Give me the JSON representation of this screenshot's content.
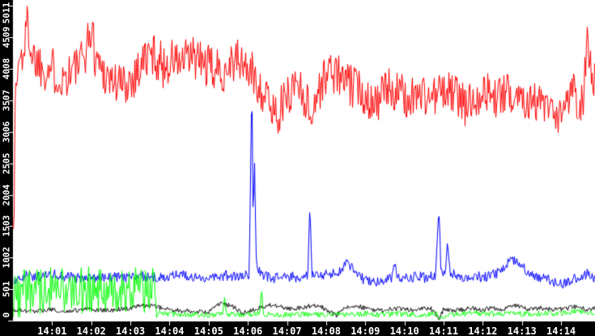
{
  "chart_data": {
    "type": "line",
    "grid": false,
    "legend": "none",
    "background": {
      "plot": "#ffffff",
      "frame": "#000000",
      "label_color": "#ffffff"
    },
    "x_axis": {
      "tick_labels": [
        "14:01",
        "14:02",
        "14:03",
        "14:04",
        "14:05",
        "14:06",
        "14:07",
        "14:08",
        "14:09",
        "14:10",
        "14:11",
        "14:12",
        "14:13",
        "14:14"
      ],
      "tick_seconds": [
        60,
        120,
        180,
        240,
        300,
        360,
        420,
        480,
        540,
        600,
        660,
        720,
        780,
        840
      ],
      "range_seconds": [
        0,
        892
      ]
    },
    "y_axis": {
      "tick_values": [
        0,
        501,
        1002,
        1503,
        2004,
        2505,
        3006,
        3507,
        4008,
        4509,
        5011
      ],
      "range": [
        0,
        5011
      ]
    },
    "render_seed": 1337,
    "series": [
      {
        "name": "red-series",
        "color": "#ff0000",
        "clamp": [
          0,
          5011
        ],
        "noise_amplitude": [
          [
            0,
            380
          ],
          [
            892,
            320
          ]
        ],
        "keyframes": [
          [
            1,
            1700
          ],
          [
            3,
            3600
          ],
          [
            8,
            4100
          ],
          [
            15,
            4250
          ],
          [
            22,
            4800
          ],
          [
            28,
            4250
          ],
          [
            45,
            4050
          ],
          [
            60,
            4000
          ],
          [
            75,
            3850
          ],
          [
            90,
            4000
          ],
          [
            105,
            4100
          ],
          [
            120,
            4650
          ],
          [
            126,
            4200
          ],
          [
            140,
            3950
          ],
          [
            155,
            3800
          ],
          [
            170,
            3750
          ],
          [
            185,
            3900
          ],
          [
            200,
            4150
          ],
          [
            215,
            4250
          ],
          [
            230,
            4050
          ],
          [
            245,
            4150
          ],
          [
            260,
            4100
          ],
          [
            275,
            4200
          ],
          [
            290,
            4100
          ],
          [
            305,
            4000
          ],
          [
            320,
            3950
          ],
          [
            335,
            4150
          ],
          [
            350,
            4100
          ],
          [
            365,
            3950
          ],
          [
            380,
            3700
          ],
          [
            395,
            3400
          ],
          [
            405,
            3300
          ],
          [
            420,
            3550
          ],
          [
            435,
            3850
          ],
          [
            450,
            3500
          ],
          [
            455,
            3250
          ],
          [
            470,
            3700
          ],
          [
            485,
            4000
          ],
          [
            500,
            3900
          ],
          [
            515,
            3750
          ],
          [
            530,
            3700
          ],
          [
            545,
            3550
          ],
          [
            560,
            3500
          ],
          [
            575,
            3700
          ],
          [
            590,
            3650
          ],
          [
            605,
            3500
          ],
          [
            620,
            3650
          ],
          [
            635,
            3550
          ],
          [
            650,
            3600
          ],
          [
            665,
            3650
          ],
          [
            680,
            3600
          ],
          [
            695,
            3400
          ],
          [
            710,
            3600
          ],
          [
            725,
            3650
          ],
          [
            740,
            3550
          ],
          [
            755,
            3600
          ],
          [
            770,
            3650
          ],
          [
            785,
            3550
          ],
          [
            800,
            3500
          ],
          [
            815,
            3400
          ],
          [
            835,
            3150
          ],
          [
            848,
            3400
          ],
          [
            858,
            3900
          ],
          [
            866,
            3350
          ],
          [
            875,
            3600
          ],
          [
            881,
            4650
          ],
          [
            884,
            4100
          ],
          [
            889,
            3850
          ],
          [
            892,
            3800
          ]
        ]
      },
      {
        "name": "blue-series",
        "color": "#0000ff",
        "clamp": [
          0,
          5011
        ],
        "noise_amplitude": [
          [
            0,
            85
          ],
          [
            892,
            85
          ]
        ],
        "keyframes": [
          [
            1,
            650
          ],
          [
            20,
            720
          ],
          [
            40,
            700
          ],
          [
            60,
            760
          ],
          [
            80,
            700
          ],
          [
            100,
            680
          ],
          [
            120,
            700
          ],
          [
            140,
            680
          ],
          [
            160,
            700
          ],
          [
            180,
            690
          ],
          [
            200,
            700
          ],
          [
            220,
            680
          ],
          [
            240,
            700
          ],
          [
            255,
            760
          ],
          [
            270,
            700
          ],
          [
            290,
            680
          ],
          [
            310,
            700
          ],
          [
            330,
            720
          ],
          [
            350,
            700
          ],
          [
            362,
            720
          ],
          [
            366,
            3980
          ],
          [
            368,
            1400
          ],
          [
            370,
            2550
          ],
          [
            373,
            850
          ],
          [
            385,
            700
          ],
          [
            400,
            680
          ],
          [
            420,
            700
          ],
          [
            440,
            690
          ],
          [
            452,
            700
          ],
          [
            455,
            1900
          ],
          [
            458,
            750
          ],
          [
            470,
            700
          ],
          [
            485,
            750
          ],
          [
            500,
            780
          ],
          [
            508,
            850
          ],
          [
            513,
            930
          ],
          [
            525,
            750
          ],
          [
            540,
            640
          ],
          [
            552,
            600
          ],
          [
            565,
            620
          ],
          [
            580,
            680
          ],
          [
            585,
            950
          ],
          [
            590,
            700
          ],
          [
            605,
            680
          ],
          [
            620,
            700
          ],
          [
            635,
            680
          ],
          [
            648,
            720
          ],
          [
            653,
            1900
          ],
          [
            656,
            800
          ],
          [
            662,
            700
          ],
          [
            666,
            1280
          ],
          [
            670,
            750
          ],
          [
            685,
            700
          ],
          [
            700,
            680
          ],
          [
            715,
            700
          ],
          [
            730,
            700
          ],
          [
            745,
            780
          ],
          [
            758,
            920
          ],
          [
            768,
            980
          ],
          [
            778,
            900
          ],
          [
            790,
            750
          ],
          [
            805,
            700
          ],
          [
            820,
            650
          ],
          [
            835,
            590
          ],
          [
            848,
            600
          ],
          [
            860,
            680
          ],
          [
            872,
            720
          ],
          [
            882,
            750
          ],
          [
            892,
            680
          ]
        ]
      },
      {
        "name": "black-series",
        "color": "#000000",
        "clamp": [
          5,
          5011
        ],
        "noise_amplitude": [
          [
            0,
            38
          ],
          [
            892,
            38
          ]
        ],
        "keyframes": [
          [
            1,
            170
          ],
          [
            25,
            140
          ],
          [
            55,
            170
          ],
          [
            85,
            150
          ],
          [
            115,
            185
          ],
          [
            145,
            160
          ],
          [
            175,
            195
          ],
          [
            205,
            245
          ],
          [
            222,
            215
          ],
          [
            240,
            170
          ],
          [
            270,
            150
          ],
          [
            300,
            135
          ],
          [
            315,
            265
          ],
          [
            335,
            240
          ],
          [
            352,
            115
          ],
          [
            375,
            200
          ],
          [
            395,
            250
          ],
          [
            427,
            180
          ],
          [
            455,
            230
          ],
          [
            470,
            235
          ],
          [
            495,
            85
          ],
          [
            515,
            230
          ],
          [
            533,
            215
          ],
          [
            560,
            160
          ],
          [
            590,
            190
          ],
          [
            620,
            170
          ],
          [
            640,
            200
          ],
          [
            654,
            30
          ],
          [
            660,
            180
          ],
          [
            680,
            160
          ],
          [
            700,
            200
          ],
          [
            720,
            170
          ],
          [
            737,
            200
          ],
          [
            750,
            180
          ],
          [
            770,
            240
          ],
          [
            790,
            180
          ],
          [
            810,
            200
          ],
          [
            830,
            170
          ],
          [
            850,
            200
          ],
          [
            865,
            230
          ],
          [
            880,
            180
          ],
          [
            892,
            190
          ]
        ]
      },
      {
        "name": "green-series",
        "color": "#00ff00",
        "clamp": [
          20,
          5011
        ],
        "noise_amplitude": [
          [
            0,
            380
          ],
          [
            218,
            380
          ],
          [
            223,
            45
          ],
          [
            892,
            45
          ]
        ],
        "keyframes": [
          [
            1,
            420
          ],
          [
            30,
            450
          ],
          [
            60,
            480
          ],
          [
            90,
            460
          ],
          [
            120,
            500
          ],
          [
            150,
            470
          ],
          [
            180,
            470
          ],
          [
            205,
            460
          ],
          [
            215,
            480
          ],
          [
            217,
            560
          ],
          [
            219,
            260
          ],
          [
            222,
            110
          ],
          [
            260,
            100
          ],
          [
            300,
            95
          ],
          [
            321,
            100
          ],
          [
            324,
            430
          ],
          [
            327,
            100
          ],
          [
            378,
            105
          ],
          [
            381,
            465
          ],
          [
            384,
            100
          ],
          [
            420,
            90
          ],
          [
            450,
            100
          ],
          [
            480,
            95
          ],
          [
            510,
            100
          ],
          [
            540,
            110
          ],
          [
            560,
            95
          ],
          [
            590,
            105
          ],
          [
            620,
            100
          ],
          [
            650,
            110
          ],
          [
            654,
            60
          ],
          [
            680,
            100
          ],
          [
            710,
            120
          ],
          [
            730,
            110
          ],
          [
            760,
            115
          ],
          [
            790,
            105
          ],
          [
            820,
            110
          ],
          [
            850,
            120
          ],
          [
            868,
            155
          ],
          [
            880,
            120
          ],
          [
            892,
            115
          ]
        ]
      }
    ]
  }
}
